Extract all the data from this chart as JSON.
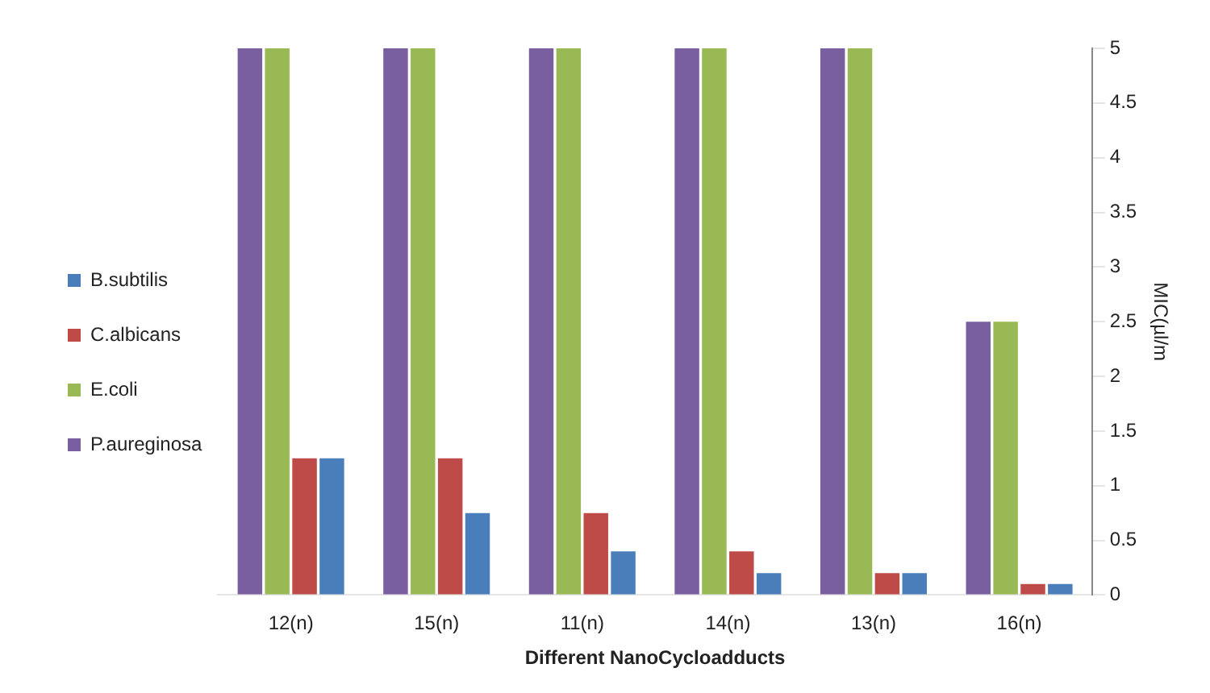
{
  "chart_data": {
    "type": "bar",
    "xlabel": "Different NanoCycloadducts",
    "ylabel": "MIC(µl/m",
    "categories": [
      "12(n)",
      "15(n)",
      "11(n)",
      "14(n)",
      "13(n)",
      "16(n)"
    ],
    "series": [
      {
        "name": "P.aureginosa",
        "color": "#7a5fa0",
        "values": [
          5,
          5,
          5,
          5,
          5,
          2.5
        ]
      },
      {
        "name": "E.coli",
        "color": "#98b954",
        "values": [
          5,
          5,
          5,
          5,
          5,
          2.5
        ]
      },
      {
        "name": "C.albicans",
        "color": "#be4b48",
        "values": [
          1.25,
          1.25,
          0.75,
          0.4,
          0.2,
          0.1
        ]
      },
      {
        "name": "B.subtilis",
        "color": "#4a7ebb",
        "values": [
          1.25,
          0.75,
          0.4,
          0.2,
          0.2,
          0.1
        ]
      }
    ],
    "ylim": [
      0,
      5
    ],
    "yticks": [
      0,
      0.5,
      1,
      1.5,
      2,
      2.5,
      3,
      3.5,
      4,
      4.5,
      5
    ],
    "grid": false,
    "legend": "left"
  }
}
